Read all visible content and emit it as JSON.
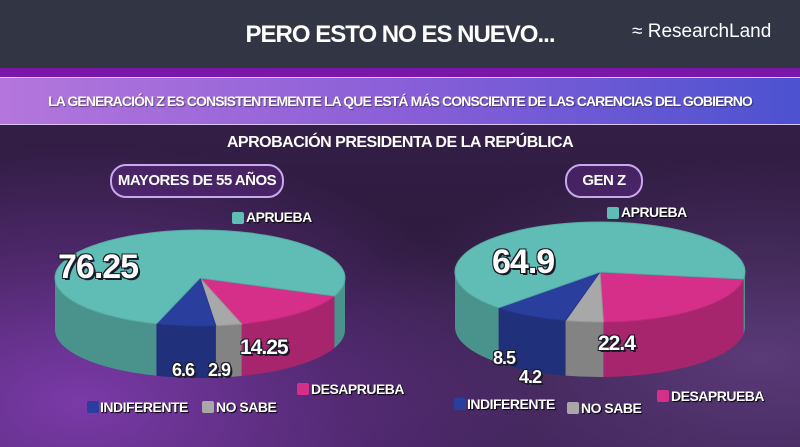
{
  "header": {
    "title": "PERO ESTO NO ES NUEVO...",
    "logo": "ResearchLand"
  },
  "banner": {
    "text": "LA GENERACIÓN Z ES CONSISTENTEMENTE LA QUE ESTÁ MÁS CONSCIENTE DE LAS CARENCIAS DEL GOBIERNO"
  },
  "chart_data": [
    {
      "type": "pie",
      "title": "MAYORES DE 55 AÑOS",
      "suptitle": "APROBACIÓN PRESIDENTA DE LA REPÚBLICA",
      "categories": [
        "APRUEBA",
        "DESAPRUEBA",
        "NO SABE",
        "INDIFERENTE"
      ],
      "values": [
        "76.25",
        "14.25",
        "2.9",
        "6.6"
      ],
      "colors": [
        "#5fbdb5",
        "#d62f8a",
        "#a8a8a8",
        "#2a3e9e"
      ],
      "style": "3d"
    },
    {
      "type": "pie",
      "title": "GEN Z",
      "categories": [
        "APRUEBA",
        "DESAPRUEBA",
        "NO SABE",
        "INDIFERENTE"
      ],
      "values": [
        "64.9",
        "22.4",
        "4.2",
        "8.5"
      ],
      "colors": [
        "#5fbdb5",
        "#d62f8a",
        "#a8a8a8",
        "#2a3e9e"
      ],
      "style": "3d"
    }
  ]
}
